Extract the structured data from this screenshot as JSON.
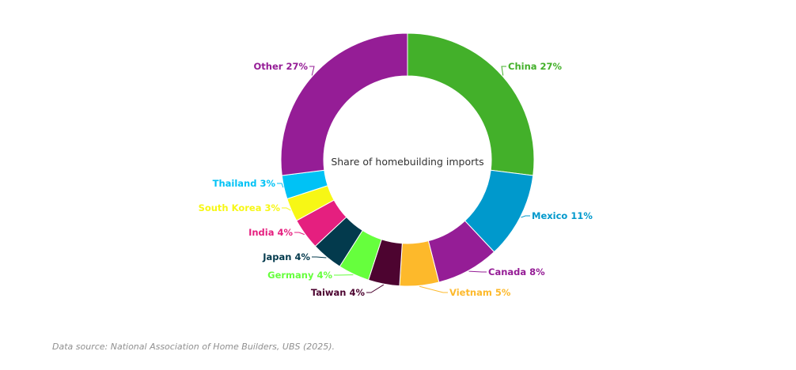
{
  "chart_data": {
    "type": "pie",
    "variant": "donut",
    "center_label": "Share of homebuilding imports",
    "slices": [
      {
        "label": "China 27%",
        "value": 27,
        "color": "#43b02a"
      },
      {
        "label": "Mexico 11%",
        "value": 11,
        "color": "#0099cc"
      },
      {
        "label": "Canada 8%",
        "value": 8,
        "color": "#951d96"
      },
      {
        "label": "Vietnam 5%",
        "value": 5,
        "color": "#fdb92b"
      },
      {
        "label": "Taiwan 4%",
        "value": 4,
        "color": "#4d0430"
      },
      {
        "label": "Germany 4%",
        "value": 4,
        "color": "#66ff3d"
      },
      {
        "label": "Japan 4%",
        "value": 4,
        "color": "#033a4d"
      },
      {
        "label": "India 4%",
        "value": 4,
        "color": "#e51f7f"
      },
      {
        "label": "South Korea 3%",
        "value": 3,
        "color": "#f7f715"
      },
      {
        "label": "Thailand 3%",
        "value": 3,
        "color": "#00c2f5"
      },
      {
        "label": "Other 27%",
        "value": 27,
        "color": "#951d96"
      }
    ]
  },
  "source_note": "Data source: National Association of Home Builders, UBS (2025)."
}
